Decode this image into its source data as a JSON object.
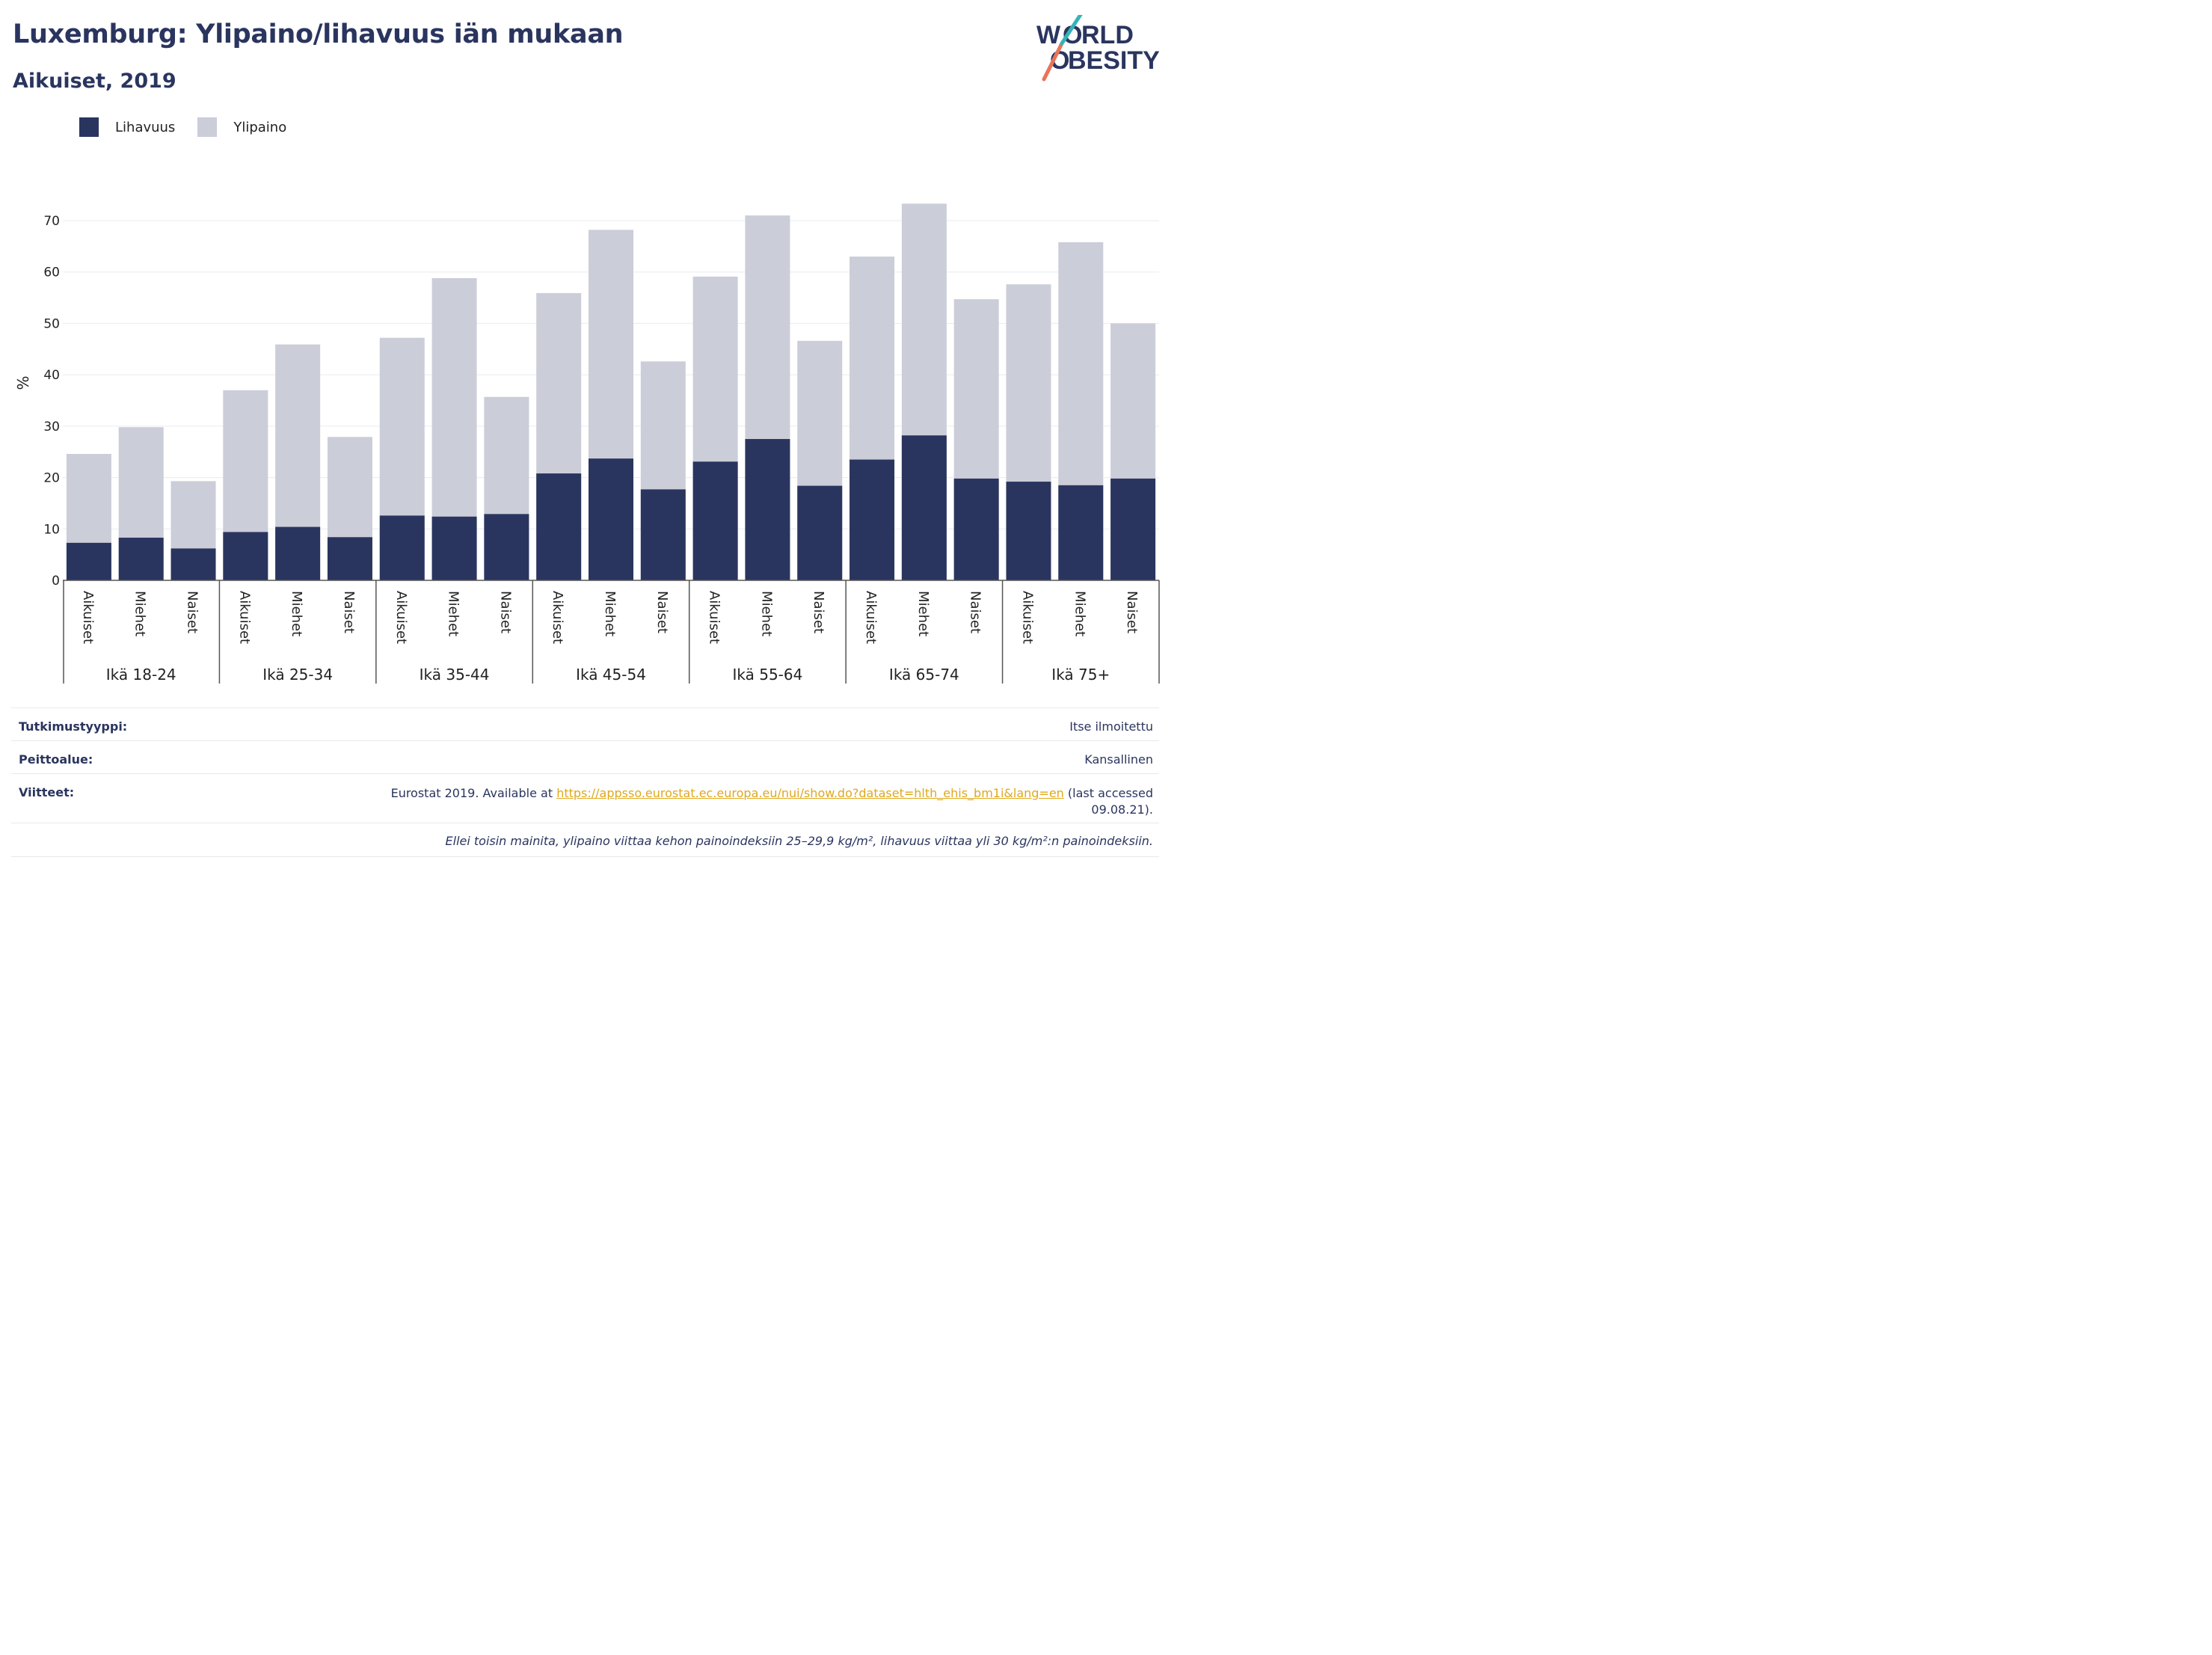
{
  "header": {
    "title": "Luxemburg: Ylipaino/lihavuus iän mukaan",
    "subtitle": "Aikuiset, 2019"
  },
  "logo": {
    "line1": "WORLD",
    "line2": "OBESITY"
  },
  "legend": [
    {
      "label": "Lihavuus",
      "color": "#2a355f"
    },
    {
      "label": "Ylipaino",
      "color": "#cbcdd8"
    }
  ],
  "chart_data": {
    "type": "bar",
    "stacked": "overlay",
    "ylabel": "%",
    "ylim": [
      0,
      75
    ],
    "yticks": [
      0,
      10,
      20,
      30,
      40,
      50,
      60,
      70
    ],
    "grid": true,
    "legend_position": "top-left",
    "groups": [
      "Ikä 18-24",
      "Ikä 25-34",
      "Ikä 35-44",
      "Ikä 45-54",
      "Ikä 55-64",
      "Ikä 65-74",
      "Ikä 75+"
    ],
    "subcategories": [
      "Aikuiset",
      "Miehet",
      "Naiset"
    ],
    "series": [
      {
        "name": "Lihavuus",
        "color": "#2a355f",
        "values": [
          7.3,
          8.3,
          6.2,
          9.4,
          10.4,
          8.4,
          12.6,
          12.4,
          12.9,
          20.8,
          23.7,
          17.7,
          23.1,
          27.5,
          18.4,
          23.5,
          28.2,
          19.8,
          19.2,
          18.5,
          19.8
        ]
      },
      {
        "name": "Ylipaino",
        "color": "#cbcdd8",
        "values": [
          24.6,
          29.8,
          19.3,
          37.0,
          45.9,
          27.9,
          47.2,
          58.8,
          35.7,
          55.9,
          68.2,
          42.6,
          59.1,
          71.0,
          46.6,
          63.0,
          73.3,
          54.7,
          57.6,
          65.8,
          50.0
        ]
      }
    ]
  },
  "info": {
    "study_type_label": "Tutkimustyyppi:",
    "study_type_value": "Itse ilmoitettu",
    "coverage_label": "Peittoalue:",
    "coverage_value": "Kansallinen",
    "references_label": "Viitteet:",
    "references_prefix": "Eurostat 2019. Available at ",
    "references_link": "https://appsso.eurostat.ec.europa.eu/nui/show.do?dataset=hlth_ehis_bm1i&lang=en",
    "references_suffix_1": " (last accessed",
    "references_suffix_2": "09.08.21).",
    "note": "Ellei toisin mainita, ylipaino viittaa kehon painoindeksiin 25–29,9 kg/m², lihavuus viittaa yli 30 kg/m²:n painoindeksiin."
  }
}
